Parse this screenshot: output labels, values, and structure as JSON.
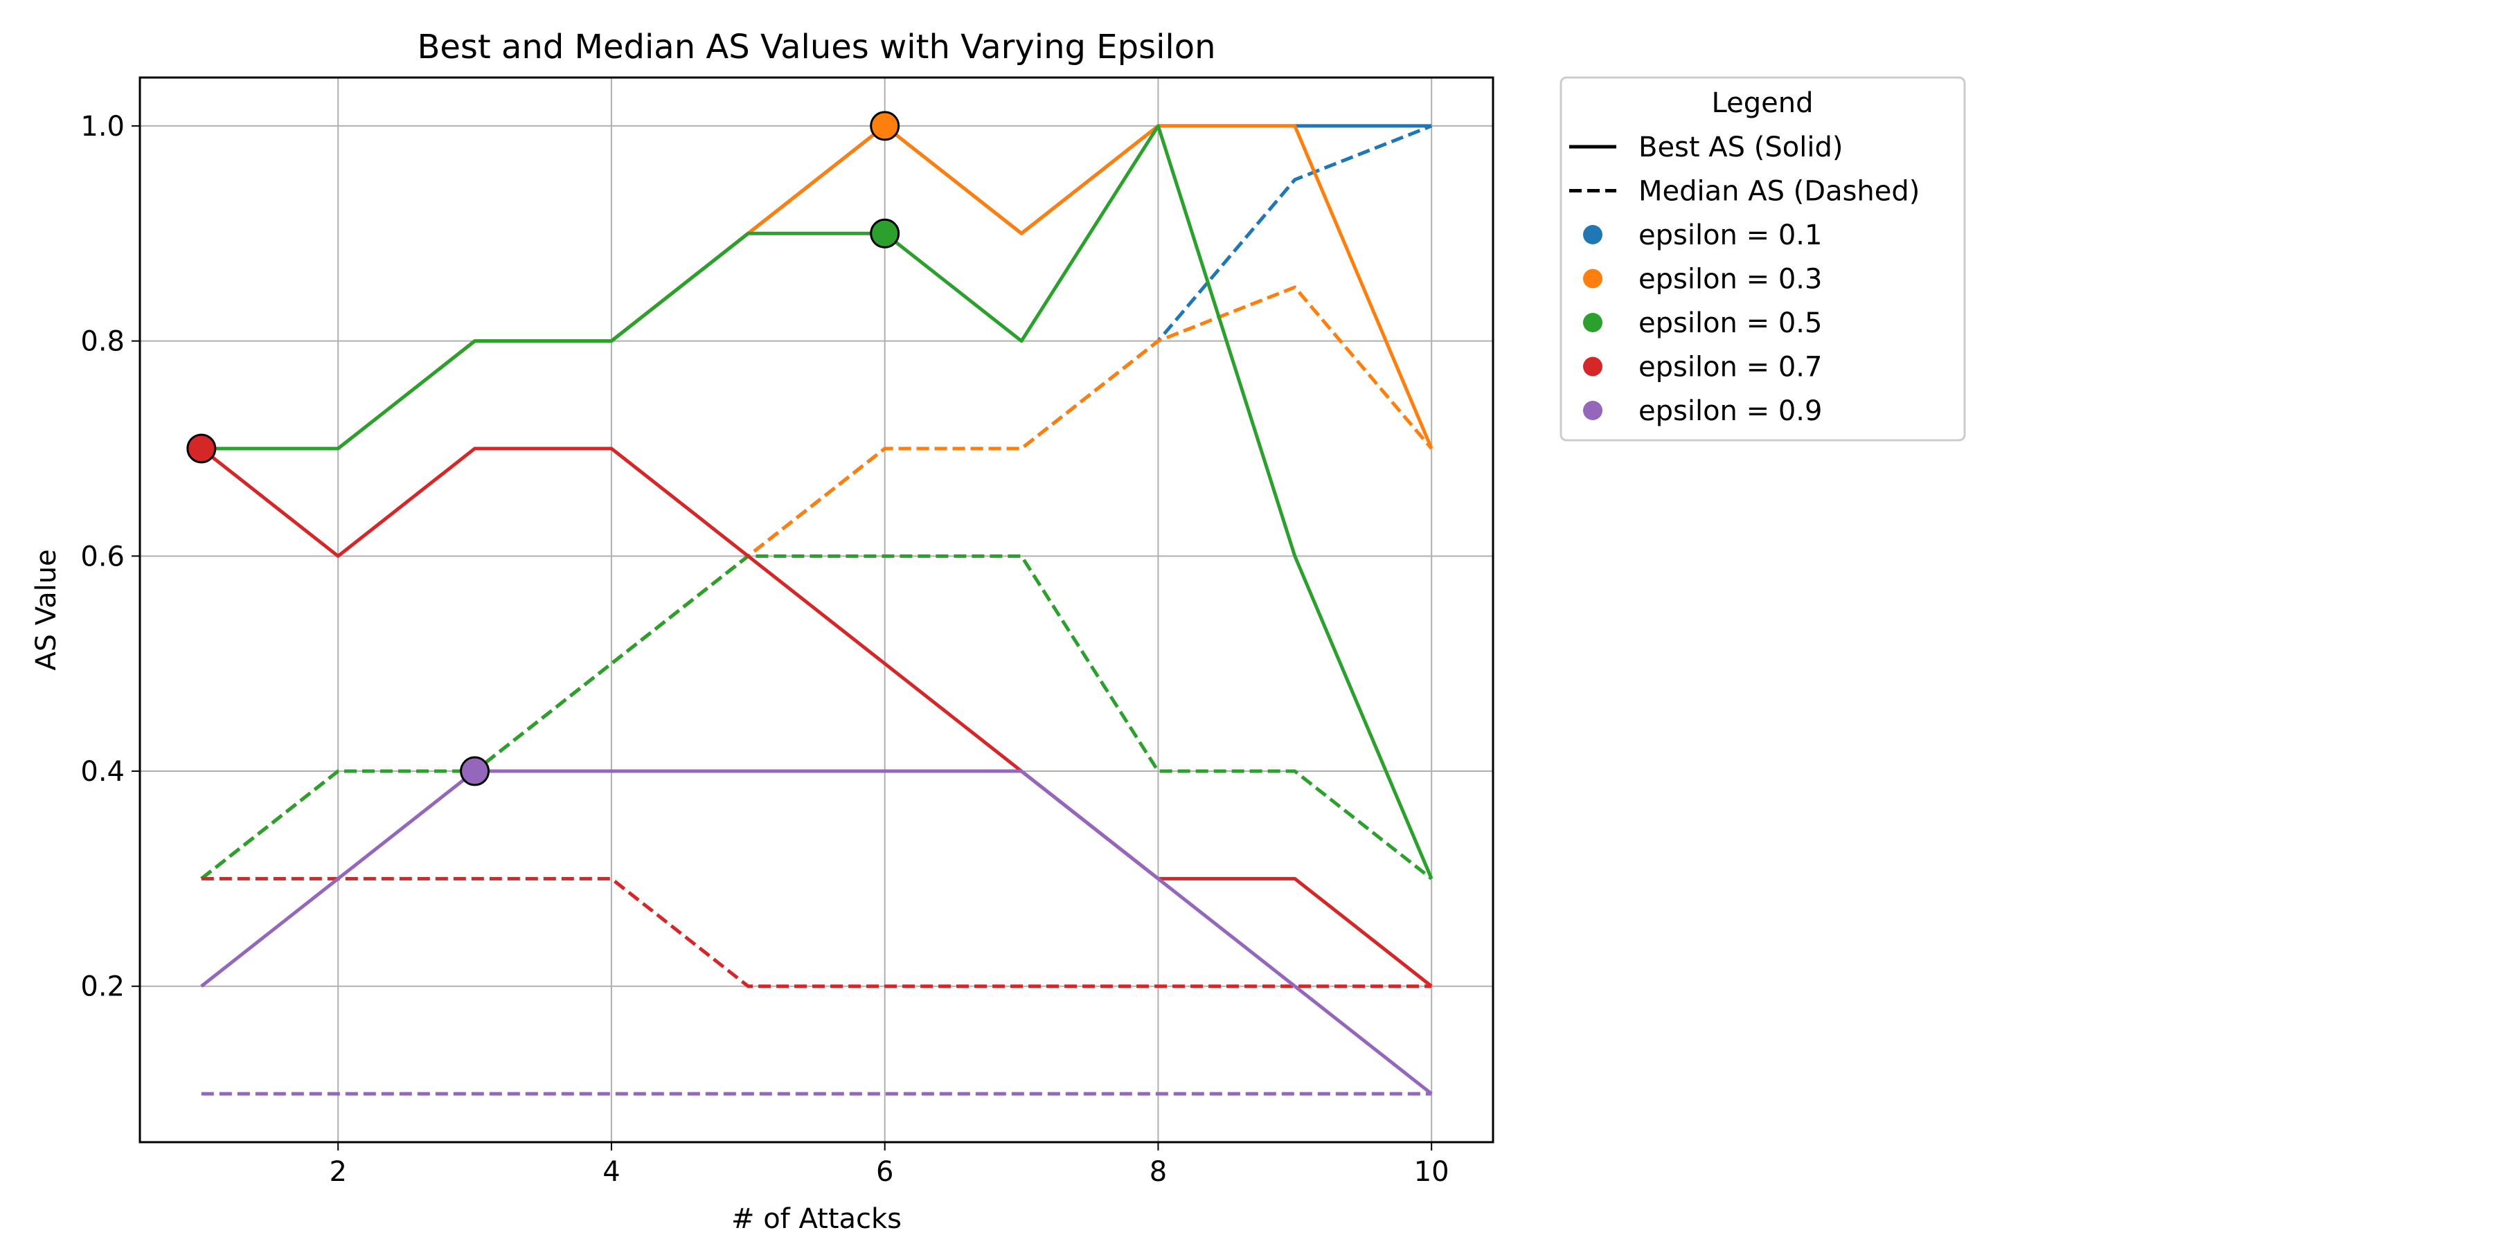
{
  "chart_data": {
    "type": "line",
    "title": "Best and Median AS Values with Varying Epsilon",
    "xlabel": "# of Attacks",
    "ylabel": "AS Value",
    "x": [
      1,
      2,
      3,
      4,
      5,
      6,
      7,
      8,
      9,
      10
    ],
    "xlim": [
      0.55,
      10.45
    ],
    "ylim": [
      0.055,
      1.045
    ],
    "xticks": [
      2,
      4,
      6,
      8,
      10
    ],
    "yticks": [
      0.2,
      0.4,
      0.6,
      0.8,
      1.0
    ],
    "grid": true,
    "legend": {
      "title": "Legend",
      "placement": "outside-top-right",
      "style_entries": [
        {
          "label": "Best AS (Solid)",
          "dash": "solid"
        },
        {
          "label": "Median AS (Dashed)",
          "dash": "dashed"
        }
      ]
    },
    "series": [
      {
        "name": "epsilon = 0.1",
        "color": "#1f77b4",
        "best": [
          0.7,
          0.7,
          0.8,
          0.8,
          0.9,
          1.0,
          0.9,
          1.0,
          1.0,
          1.0
        ],
        "median": [
          0.3,
          0.4,
          0.4,
          0.5,
          0.6,
          0.7,
          0.7,
          0.8,
          0.95,
          1.0
        ],
        "best_marker": null
      },
      {
        "name": "epsilon = 0.3",
        "color": "#ff7f0e",
        "best": [
          0.7,
          0.7,
          0.8,
          0.8,
          0.9,
          1.0,
          0.9,
          1.0,
          1.0,
          0.7
        ],
        "median": [
          0.3,
          0.4,
          0.4,
          0.5,
          0.6,
          0.7,
          0.7,
          0.8,
          0.85,
          0.7
        ],
        "best_marker": {
          "x": 6,
          "y": 1.0
        }
      },
      {
        "name": "epsilon = 0.5",
        "color": "#2ca02c",
        "best": [
          0.7,
          0.7,
          0.8,
          0.8,
          0.9,
          0.9,
          0.8,
          1.0,
          0.6,
          0.3
        ],
        "median": [
          0.3,
          0.4,
          0.4,
          0.5,
          0.6,
          0.6,
          0.6,
          0.4,
          0.4,
          0.3
        ],
        "best_marker": {
          "x": 6,
          "y": 0.9
        }
      },
      {
        "name": "epsilon = 0.7",
        "color": "#d62728",
        "best": [
          0.7,
          0.6,
          0.7,
          0.7,
          0.6,
          0.5,
          0.4,
          0.3,
          0.3,
          0.2
        ],
        "median": [
          0.3,
          0.3,
          0.3,
          0.3,
          0.2,
          0.2,
          0.2,
          0.2,
          0.2,
          0.2
        ],
        "best_marker": {
          "x": 1,
          "y": 0.7
        }
      },
      {
        "name": "epsilon = 0.9",
        "color": "#9467bd",
        "best": [
          0.2,
          0.3,
          0.4,
          0.4,
          0.4,
          0.4,
          0.4,
          0.3,
          0.2,
          0.1
        ],
        "median": [
          0.1,
          0.1,
          0.1,
          0.1,
          0.1,
          0.1,
          0.1,
          0.1,
          0.1,
          0.1
        ],
        "best_marker": {
          "x": 3,
          "y": 0.4
        }
      }
    ]
  }
}
